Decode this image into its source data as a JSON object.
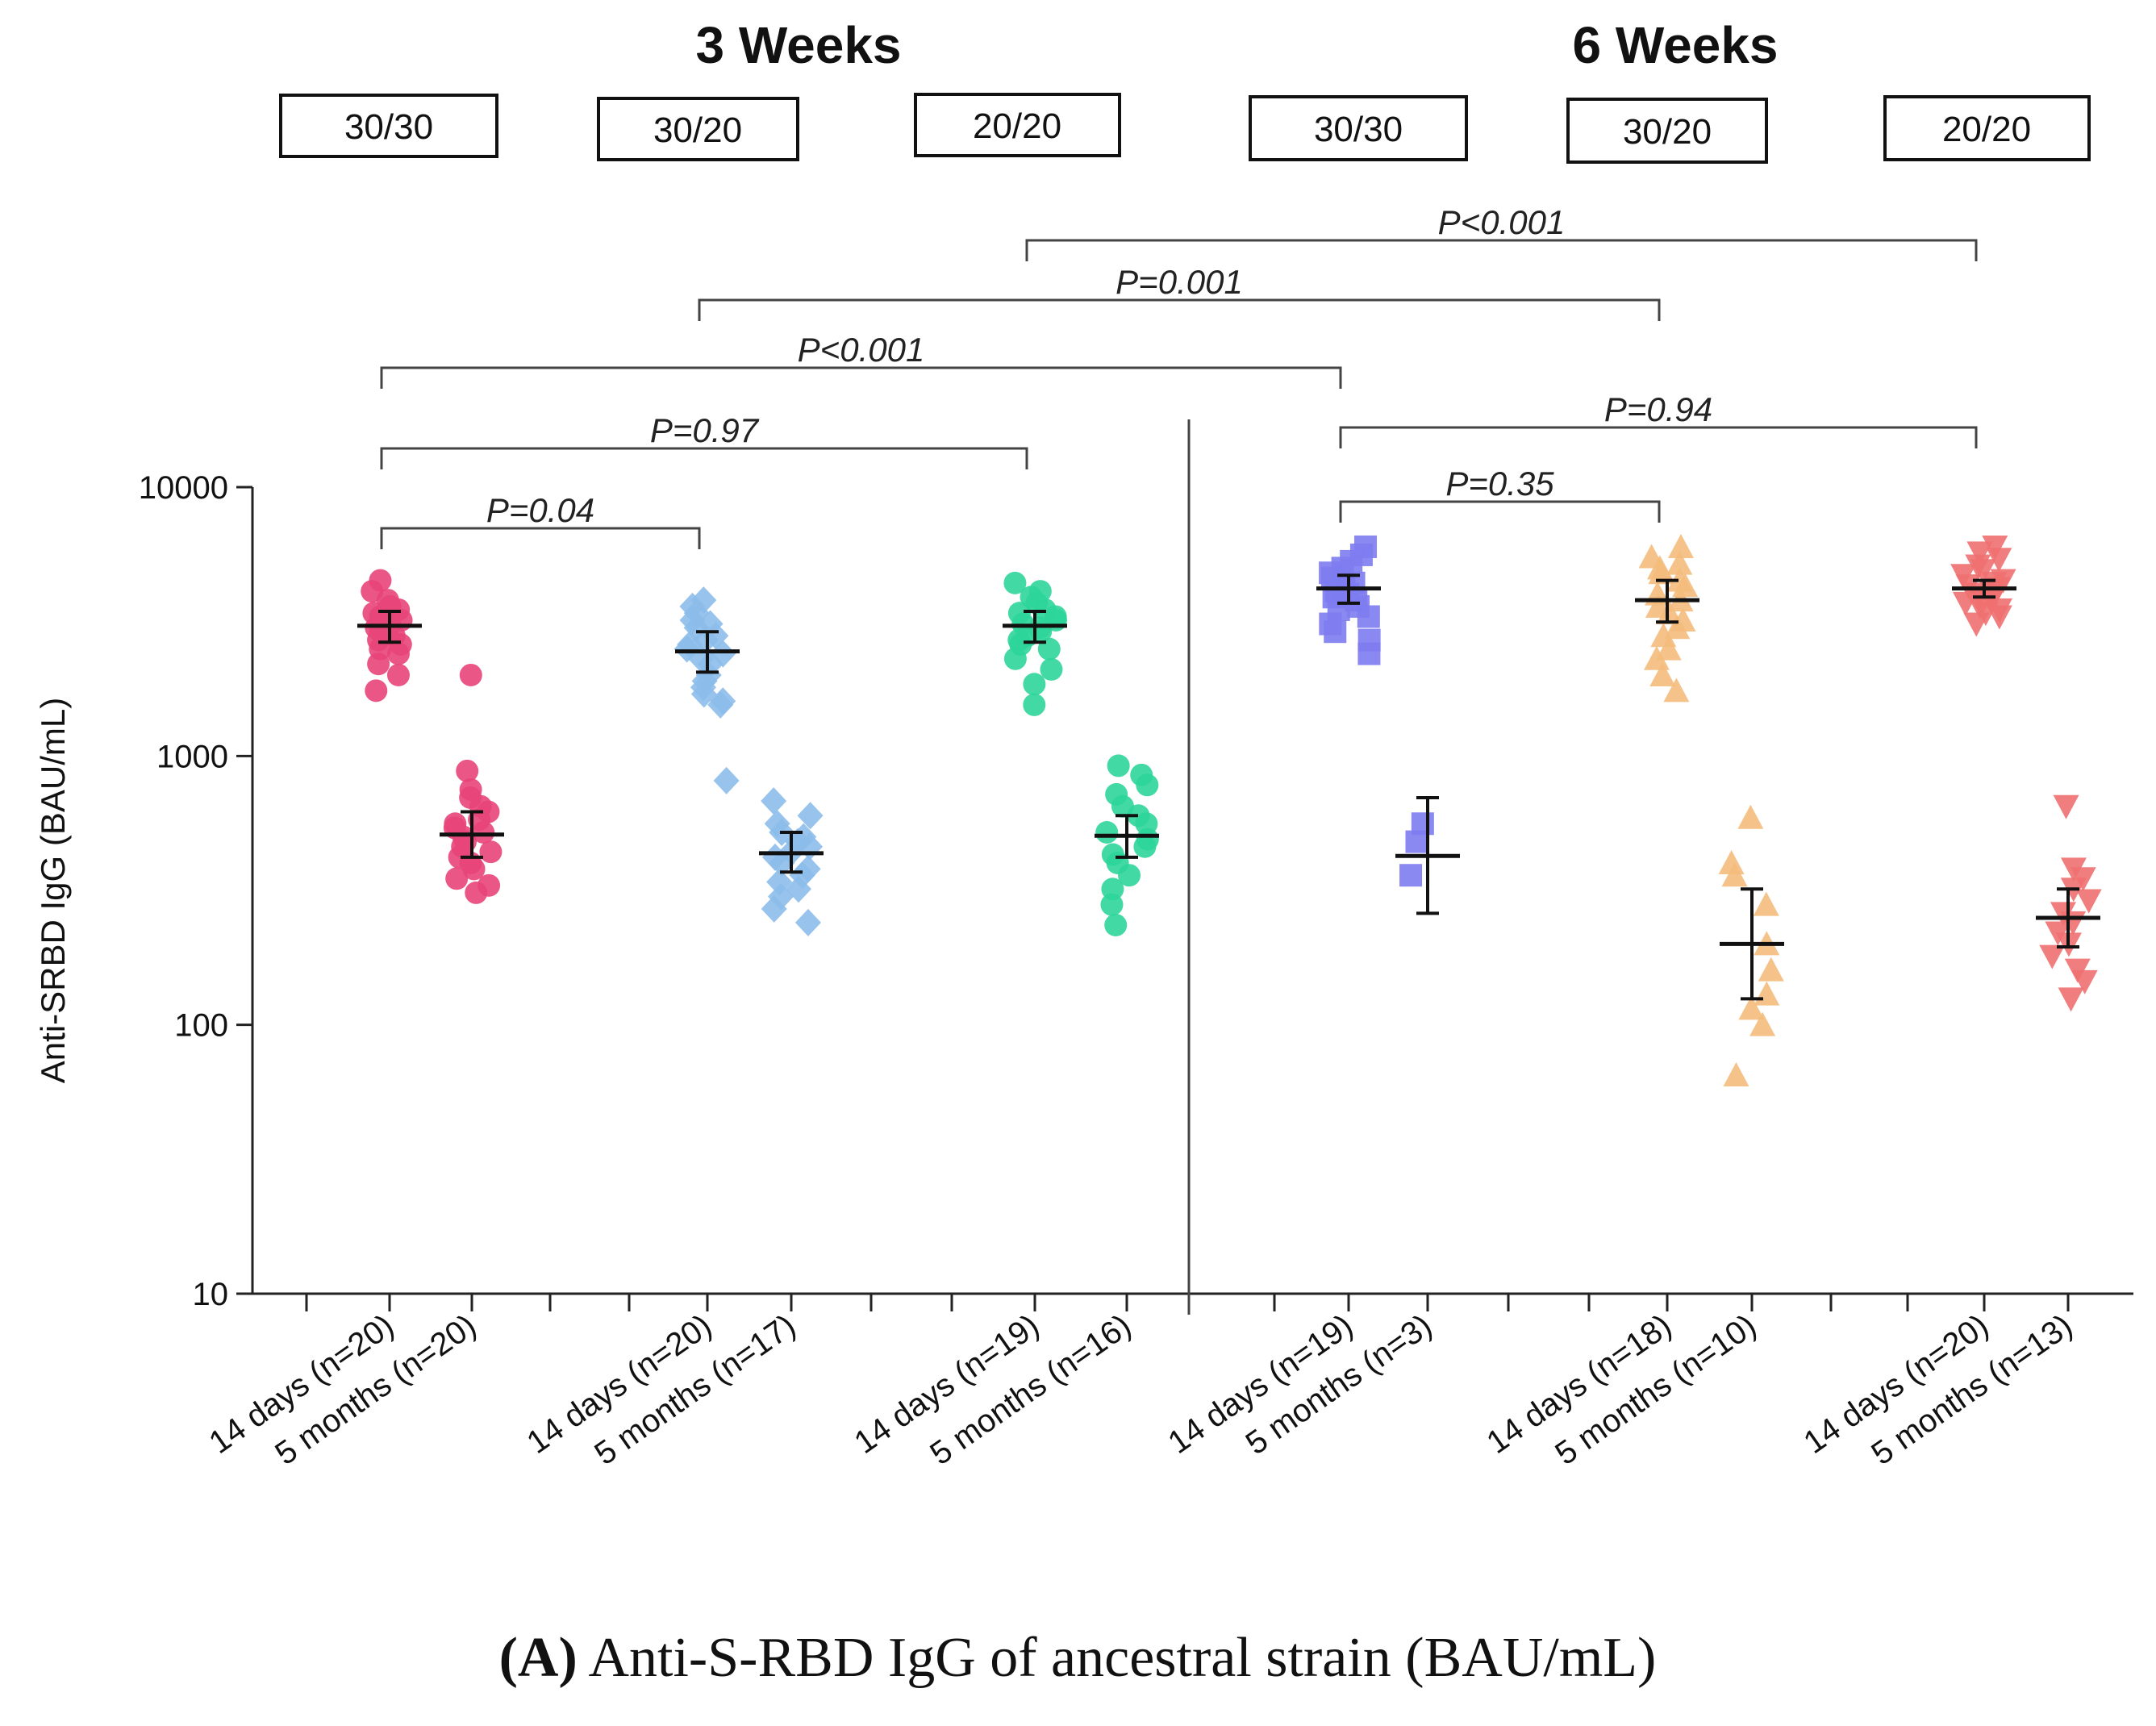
{
  "chart_data": {
    "type": "scatter",
    "scale": "log",
    "ylabel": "Anti-SRBD IgG (BAU/mL)",
    "ylim": [
      10,
      10000
    ],
    "yticks": [
      "10",
      "100",
      "1000",
      "10000"
    ],
    "caption_prefix": "(A)",
    "caption_text": " Anti-S-RBD IgG of ancestral strain (BAU/mL)",
    "panels": [
      {
        "title": "3 Weeks",
        "groups": [
          "30/30",
          "30/20",
          "20/20"
        ]
      },
      {
        "title": "6 Weeks",
        "groups": [
          "30/30",
          "30/20",
          "20/20"
        ]
      }
    ],
    "categories": [
      "14 days (n=20)",
      "5 months (n=20)",
      "14 days (n=20)",
      "5 months (n=17)",
      "14 days (n=19)",
      "5 months (n=16)",
      "14 days (n=19)",
      "5 months (n=3)",
      "14 days (n=18)",
      "5 months (n=10)",
      "14 days (n=20)",
      "5 months (n=13)"
    ],
    "series": [
      {
        "name": "3 Weeks 30/30 14 days",
        "color": "#e8457a",
        "marker": "circle",
        "mean": 3050,
        "lo": 2650,
        "hi": 3450,
        "points": [
          4500,
          4100,
          3800,
          3600,
          3500,
          3400,
          3300,
          3200,
          3100,
          3000,
          2950,
          2900,
          2800,
          2700,
          2600,
          2500,
          2400,
          2200,
          2000,
          1750
        ]
      },
      {
        "name": "3 Weeks 30/30 5 months",
        "color": "#e8457a",
        "marker": "circle",
        "mean": 510,
        "lo": 420,
        "hi": 620,
        "points": [
          2000,
          880,
          750,
          700,
          650,
          620,
          580,
          560,
          540,
          520,
          500,
          480,
          460,
          440,
          420,
          400,
          380,
          350,
          330,
          310
        ]
      },
      {
        "name": "3 Weeks 30/20 14 days",
        "color": "#8cbcea",
        "marker": "diamond",
        "mean": 2450,
        "lo": 2050,
        "hi": 2900,
        "points": [
          3800,
          3600,
          3400,
          3200,
          3100,
          3000,
          2800,
          2700,
          2600,
          2500,
          2400,
          2300,
          2200,
          2000,
          1900,
          1800,
          1700,
          1600,
          1550,
          810
        ]
      },
      {
        "name": "3 Weeks 30/20 5 months",
        "color": "#8cbcea",
        "marker": "diamond",
        "mean": 435,
        "lo": 370,
        "hi": 520,
        "points": [
          680,
          600,
          560,
          520,
          500,
          480,
          460,
          440,
          420,
          400,
          380,
          360,
          340,
          320,
          300,
          270,
          240
        ]
      },
      {
        "name": "3 Weeks 20/20 14 days",
        "color": "#2ed59a",
        "marker": "circle",
        "mean": 3050,
        "lo": 2650,
        "hi": 3450,
        "points": [
          4400,
          4100,
          3900,
          3700,
          3500,
          3400,
          3300,
          3200,
          3100,
          3000,
          2900,
          2800,
          2700,
          2600,
          2500,
          2300,
          2100,
          1850,
          1550
        ]
      },
      {
        "name": "3 Weeks 20/20 5 months",
        "color": "#2ed59a",
        "marker": "circle",
        "mean": 505,
        "lo": 420,
        "hi": 600,
        "points": [
          920,
          850,
          780,
          720,
          650,
          600,
          560,
          520,
          490,
          460,
          430,
          400,
          360,
          320,
          280,
          235
        ]
      },
      {
        "name": "6 Weeks 30/30 14 days",
        "color": "#7d7cf0",
        "marker": "square",
        "mean": 4200,
        "lo": 3700,
        "hi": 4700,
        "points": [
          6000,
          5600,
          5300,
          5000,
          4800,
          4600,
          4400,
          4200,
          4100,
          4000,
          3900,
          3800,
          3600,
          3500,
          3300,
          3100,
          2900,
          2700,
          2400
        ]
      },
      {
        "name": "6 Weeks 30/30 5 months",
        "color": "#7d7cf0",
        "marker": "square",
        "mean": 425,
        "lo": 260,
        "hi": 700,
        "points": [
          560,
          480,
          360
        ]
      },
      {
        "name": "6 Weeks 30/20 14 days",
        "color": "#f4bc7c",
        "marker": "triangle-up",
        "mean": 3800,
        "lo": 3150,
        "hi": 4500,
        "points": [
          6000,
          5500,
          5200,
          5000,
          4800,
          4500,
          4300,
          4000,
          3800,
          3600,
          3400,
          3200,
          3000,
          2800,
          2500,
          2300,
          2000,
          1750
        ]
      },
      {
        "name": "6 Weeks 30/20 5 months",
        "color": "#f4bc7c",
        "marker": "triangle-up",
        "mean": 200,
        "lo": 125,
        "hi": 320,
        "points": [
          590,
          400,
          360,
          280,
          200,
          160,
          130,
          115,
          100,
          65
        ]
      },
      {
        "name": "6 Weeks 20/20 14 days",
        "color": "#f07070",
        "marker": "triangle-down",
        "mean": 4200,
        "lo": 3900,
        "hi": 4500,
        "points": [
          6000,
          5700,
          5400,
          5100,
          4900,
          4700,
          4500,
          4400,
          4300,
          4200,
          4100,
          4000,
          3900,
          3800,
          3700,
          3600,
          3500,
          3400,
          3300,
          3100
        ]
      },
      {
        "name": "6 Weeks 20/20 5 months",
        "color": "#f07070",
        "marker": "triangle-down",
        "mean": 250,
        "lo": 195,
        "hi": 320,
        "points": [
          650,
          380,
          350,
          320,
          290,
          260,
          240,
          220,
          200,
          180,
          160,
          145,
          125
        ]
      }
    ],
    "comparisons": [
      {
        "label": "P<0.001",
        "from": 5,
        "to": 11,
        "level": 4
      },
      {
        "label": "P=0.001",
        "from": 3,
        "to": 9,
        "level": 3
      },
      {
        "label": "P<0.001",
        "from": 1,
        "to": 7,
        "level": 2
      },
      {
        "label": "P=0.94",
        "from": 7,
        "to": 11,
        "level": 1
      },
      {
        "label": "P=0.97",
        "from": 1,
        "to": 5,
        "level": 0
      },
      {
        "label": "P=0.35",
        "from": 7,
        "to": 9,
        "level": -1
      },
      {
        "label": "P=0.04",
        "from": 1,
        "to": 3,
        "level": -2
      }
    ]
  }
}
